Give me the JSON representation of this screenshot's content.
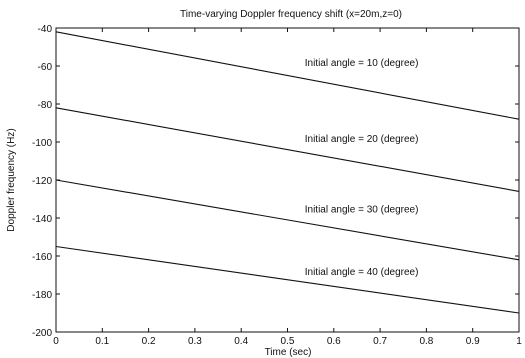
{
  "chart_data": {
    "type": "line",
    "title": "Time-varying Doppler frequency shift (x=20m,z=0)",
    "xlabel": "Time (sec)",
    "ylabel": "Doppler frequency (Hz)",
    "xlim": [
      0,
      1
    ],
    "ylim": [
      -200,
      -40
    ],
    "xticks": [
      0,
      0.1,
      0.2,
      0.3,
      0.4,
      0.5,
      0.6,
      0.7,
      0.8,
      0.9,
      1
    ],
    "xtick_labels": [
      "0",
      "0.1",
      "0.2",
      "0.3",
      "0.4",
      "0.5",
      "0.6",
      "0.7",
      "0.8",
      "0.9",
      "1"
    ],
    "yticks": [
      -200,
      -180,
      -160,
      -140,
      -120,
      -100,
      -80,
      -60,
      -40
    ],
    "ytick_labels": [
      "-200",
      "-180",
      "-160",
      "-140",
      "-120",
      "-100",
      "-80",
      "-60",
      "-40"
    ],
    "grid": false,
    "legend": "none",
    "line_color": "#111111",
    "series": [
      {
        "x": [
          0,
          1
        ],
        "values": [
          -42,
          -88
        ]
      },
      {
        "x": [
          0,
          1
        ],
        "values": [
          -82,
          -126
        ]
      },
      {
        "x": [
          0,
          1
        ],
        "values": [
          -120,
          -162
        ]
      },
      {
        "x": [
          0,
          1
        ],
        "values": [
          -155,
          -190
        ]
      }
    ],
    "annotations": [
      {
        "text": "Initial angle = 10 (degree)",
        "x": 0.66,
        "y": -58
      },
      {
        "text": "Initial angle = 20 (degree)",
        "x": 0.66,
        "y": -98
      },
      {
        "text": "Initial angle = 30 (degree)",
        "x": 0.66,
        "y": -135
      },
      {
        "text": "Initial angle = 40 (degree)",
        "x": 0.66,
        "y": -168
      }
    ]
  }
}
